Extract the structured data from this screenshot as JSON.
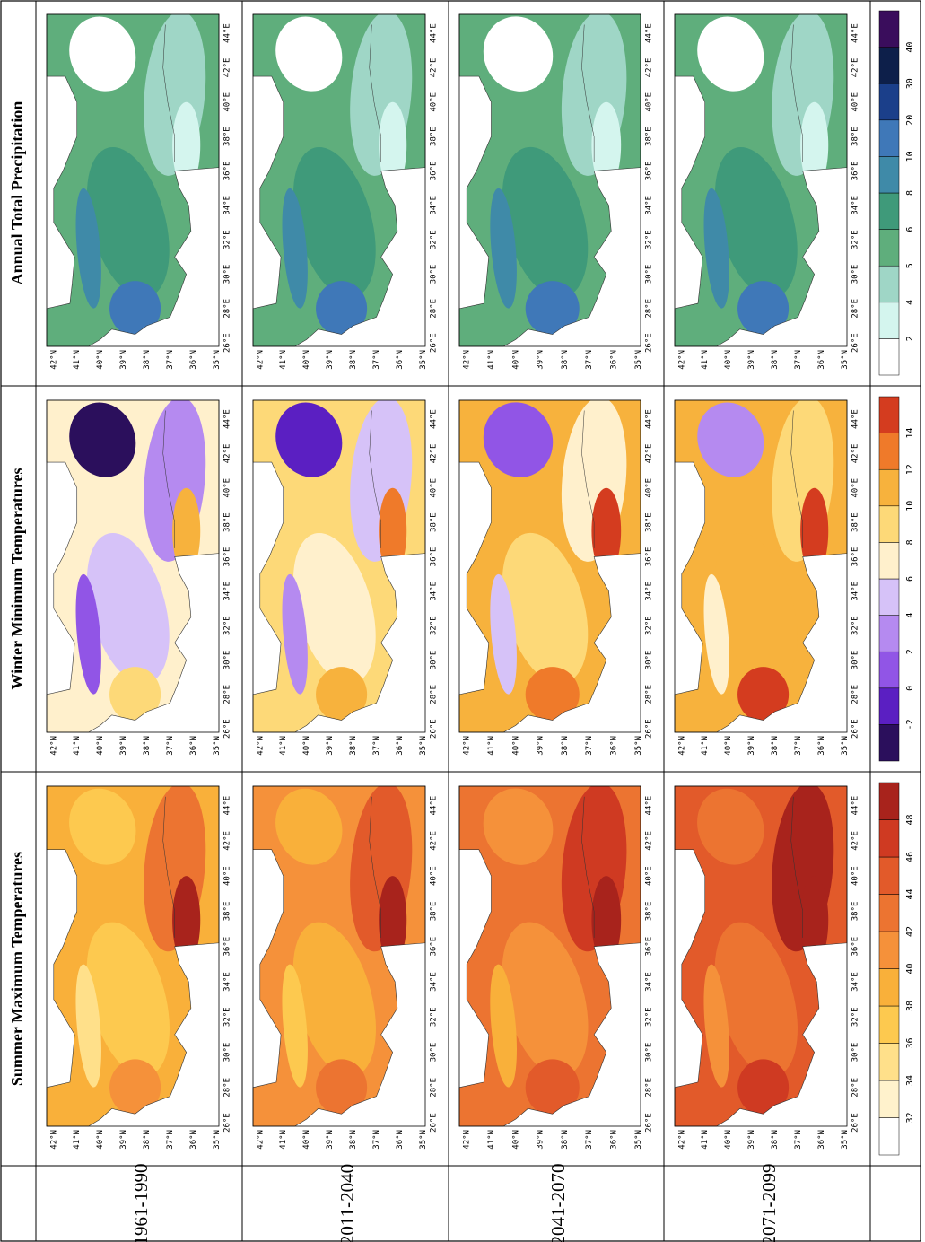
{
  "columns": [
    "Summer Maximum Temperatures",
    "Winter Minimum Temperatures",
    "Annual Total Precipitation"
  ],
  "rows": [
    "1961-1990",
    "2011-2040",
    "2041-2070",
    "2071-2099"
  ],
  "lon_ticks": [
    "26°E",
    "28°E",
    "30°E",
    "32°E",
    "34°E",
    "36°E",
    "38°E",
    "40°E",
    "42°E",
    "44°E"
  ],
  "lat_ticks": [
    "42°N",
    "41°N",
    "40°N",
    "39°N",
    "38°N",
    "37°N",
    "36°N",
    "35°N"
  ],
  "colorbars": [
    {
      "ticks": [
        32,
        34,
        36,
        38,
        40,
        42,
        44,
        46,
        48
      ],
      "colors": [
        "#ffffff",
        "#fff2cc",
        "#ffe08a",
        "#fdc94f",
        "#f9b03a",
        "#f5913a",
        "#ec7431",
        "#e25a2a",
        "#cf3a22",
        "#a8231c"
      ]
    },
    {
      "ticks": [
        -2,
        0,
        2,
        4,
        6,
        8,
        10,
        12,
        14
      ],
      "colors": [
        "#2b0f5c",
        "#5b1fc2",
        "#9155e6",
        "#b58af0",
        "#d6c2f8",
        "#fff0cc",
        "#fdd978",
        "#f7b23d",
        "#ef7a2a",
        "#d43c1f"
      ]
    },
    {
      "ticks": [
        2,
        4,
        5,
        6,
        8,
        10,
        20,
        30,
        40
      ],
      "colors": [
        "#ffffff",
        "#d4f5ee",
        "#9fd6c6",
        "#5fae7c",
        "#3f9a7a",
        "#3f8aa8",
        "#3f78b8",
        "#1b3f8a",
        "#0d1f4a",
        "#3a0d5c"
      ]
    }
  ]
}
